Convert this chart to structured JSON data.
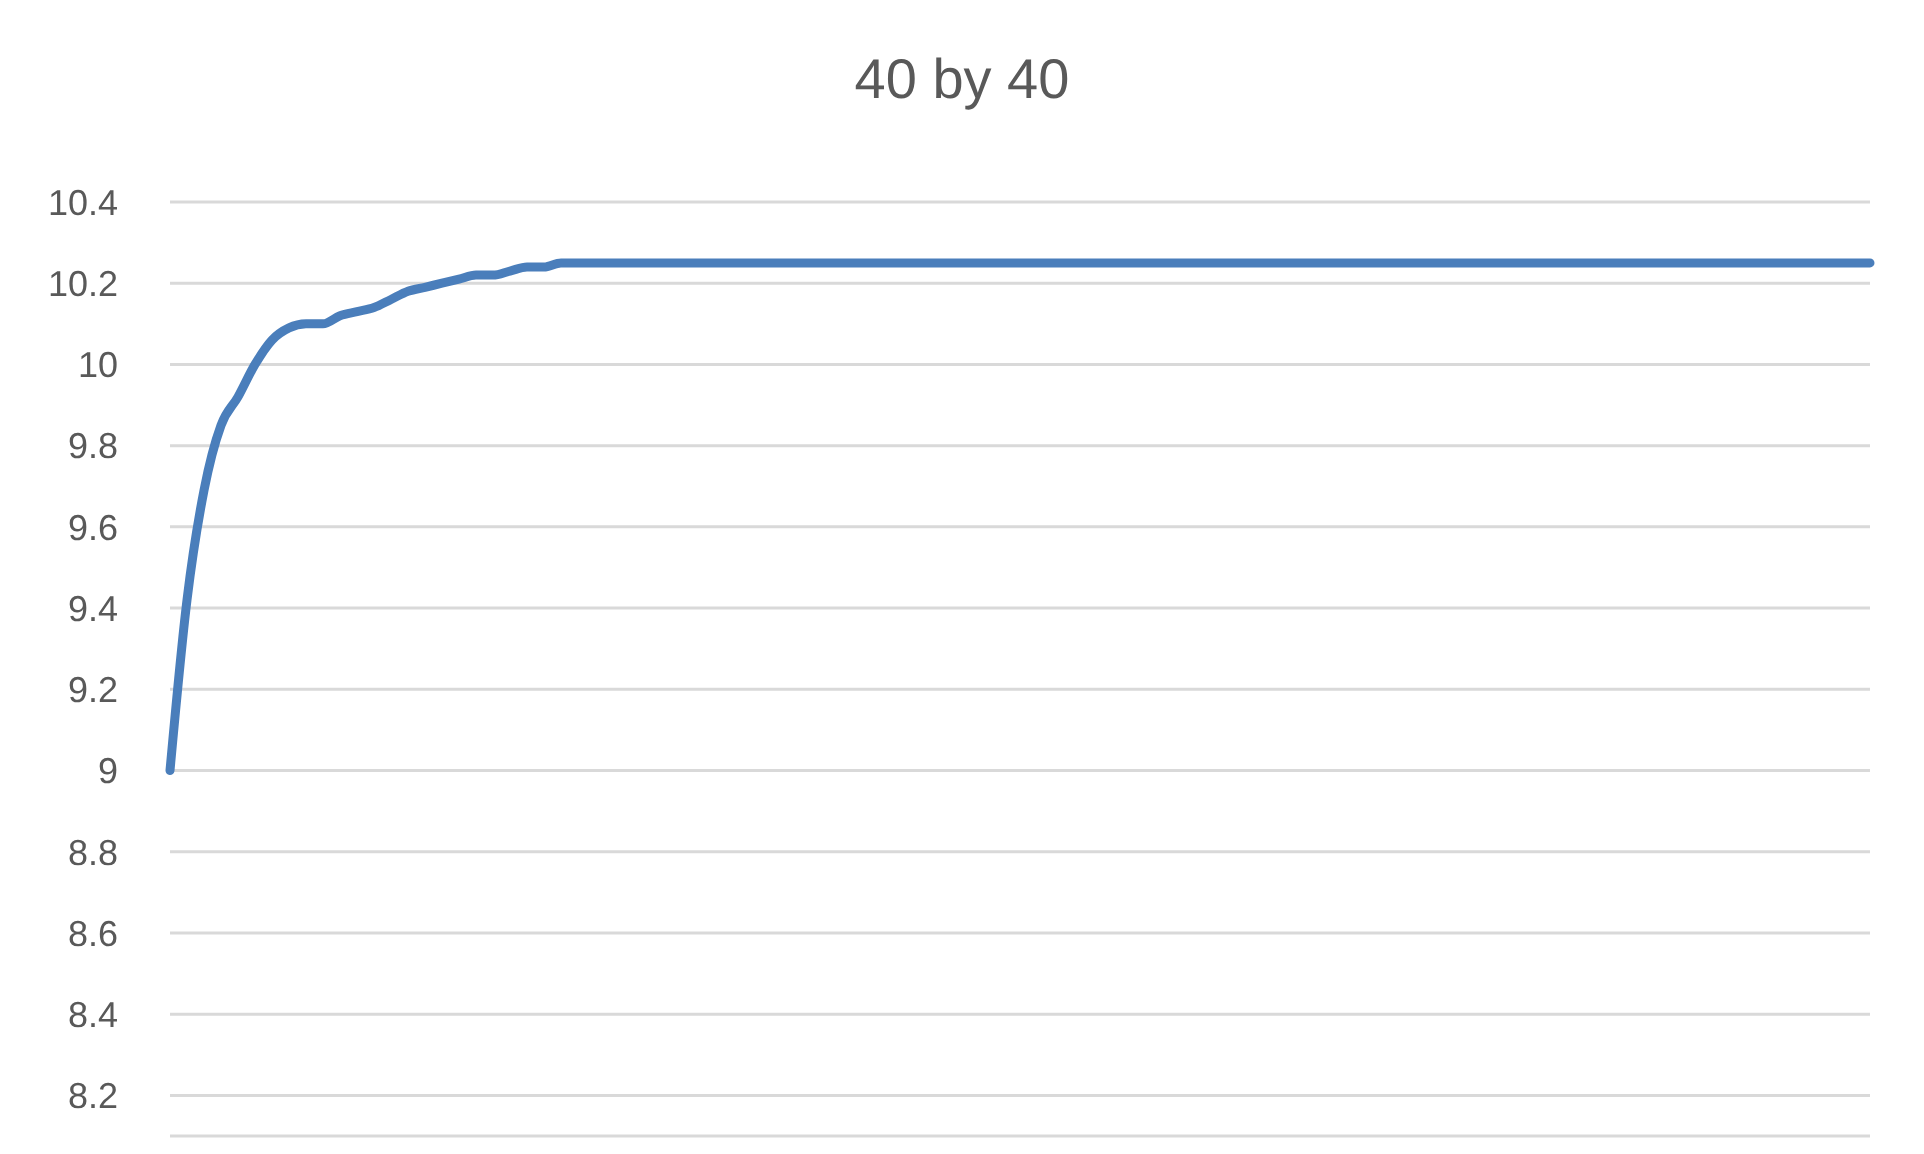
{
  "chart_data": {
    "type": "line",
    "title": "40 by 40",
    "categories": [
      null,
      null,
      null,
      null,
      null,
      null,
      null,
      null,
      null,
      null,
      null,
      null,
      null,
      null,
      null,
      null,
      null,
      null,
      null,
      null,
      null,
      null,
      null,
      null,
      null,
      null,
      null,
      null,
      null,
      null,
      null,
      null,
      null,
      null,
      null,
      null,
      null,
      null,
      null,
      null,
      null,
      null,
      null,
      null,
      null,
      null,
      null,
      null,
      null,
      null,
      null,
      null,
      null,
      null,
      null,
      null,
      null,
      null,
      null,
      null,
      null,
      null,
      null,
      null,
      null,
      null,
      null,
      null,
      null,
      null,
      null,
      null,
      null,
      null,
      null,
      null,
      null,
      null,
      null,
      null,
      null,
      null,
      null,
      null,
      null,
      null,
      null,
      null,
      null,
      null,
      null,
      null,
      null,
      null,
      null,
      null,
      null,
      null,
      null,
      null,
      null
    ],
    "series": [
      {
        "color": "#4a7ebb",
        "values": [
          9.0,
          9.42,
          9.69,
          9.85,
          9.92,
          10.0,
          10.06,
          10.09,
          10.1,
          10.1,
          10.12,
          10.13,
          10.14,
          10.16,
          10.18,
          10.19,
          10.2,
          10.21,
          10.22,
          10.22,
          10.23,
          10.24,
          10.24,
          10.25,
          10.25,
          10.25,
          10.25,
          10.25,
          10.25,
          10.25,
          10.25,
          10.25,
          10.25,
          10.25,
          10.25,
          10.25,
          10.25,
          10.25,
          10.25,
          10.25,
          10.25,
          10.25,
          10.25,
          10.25,
          10.25,
          10.25,
          10.25,
          10.25,
          10.25,
          10.25,
          10.25,
          10.25,
          10.25,
          10.25,
          10.25,
          10.25,
          10.25,
          10.25,
          10.25,
          10.25,
          10.25,
          10.25,
          10.25,
          10.25,
          10.25,
          10.25,
          10.25,
          10.25,
          10.25,
          10.25,
          10.25,
          10.25,
          10.25,
          10.25,
          10.25,
          10.25,
          10.25,
          10.25,
          10.25,
          10.25,
          10.25,
          10.25,
          10.25,
          10.25,
          10.25,
          10.25,
          10.25,
          10.25,
          10.25,
          10.25,
          10.25,
          10.25,
          10.25,
          10.25,
          10.25,
          10.25,
          10.25,
          10.25,
          10.25,
          10.25,
          10.25
        ]
      }
    ],
    "ylim": [
      8.1,
      10.4
    ],
    "yticks": [
      8.2,
      8.4,
      8.6,
      8.8,
      9,
      9.2,
      9.4,
      9.6,
      9.8,
      10,
      10.2,
      10.4
    ],
    "grid": "y",
    "tick_labels": "y",
    "marker": "none",
    "line_style": "solid"
  }
}
